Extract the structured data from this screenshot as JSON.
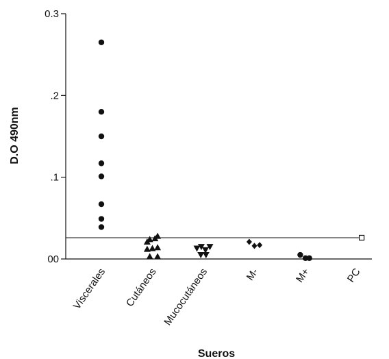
{
  "chart_data": {
    "type": "scatter",
    "xlabel": "Sueros",
    "ylabel": "D.O 490nm",
    "ylim": [
      0,
      0.3
    ],
    "yticks": [
      {
        "value": 0,
        "label": "00"
      },
      {
        "value": 0.1,
        "label": ".1"
      },
      {
        "value": 0.2,
        "label": ".2"
      },
      {
        "value": 0.3,
        "label": "0.3"
      }
    ],
    "categories": [
      "Viscerales",
      "Cutáneos",
      "Mucocutáneos",
      "M-",
      "M+",
      "PC"
    ],
    "cutoff": 0.026,
    "series": [
      {
        "category": "Viscerales",
        "marker": "circle",
        "points": [
          {
            "x": 0,
            "y": 0.265
          },
          {
            "x": 0,
            "y": 0.18
          },
          {
            "x": 0,
            "y": 0.15
          },
          {
            "x": 0,
            "y": 0.117
          },
          {
            "x": 0,
            "y": 0.101
          },
          {
            "x": 0,
            "y": 0.067
          },
          {
            "x": 0,
            "y": 0.049
          },
          {
            "x": 0,
            "y": 0.039
          }
        ]
      },
      {
        "category": "Cutáneos",
        "marker": "triangle-up",
        "points": [
          {
            "x": -0.2,
            "y": 0.021
          },
          {
            "x": -0.1,
            "y": 0.024
          },
          {
            "x": 0.1,
            "y": 0.025
          },
          {
            "x": 0.2,
            "y": 0.028
          },
          {
            "x": -0.2,
            "y": 0.012
          },
          {
            "x": 0,
            "y": 0.013
          },
          {
            "x": 0.2,
            "y": 0.014
          },
          {
            "x": -0.1,
            "y": 0.003
          },
          {
            "x": 0.2,
            "y": 0.003
          }
        ]
      },
      {
        "category": "Mucocutáneos",
        "marker": "triangle-down",
        "points": [
          {
            "x": -0.25,
            "y": 0.013
          },
          {
            "x": -0.08,
            "y": 0.015
          },
          {
            "x": 0.08,
            "y": 0.011
          },
          {
            "x": 0.25,
            "y": 0.015
          },
          {
            "x": -0.1,
            "y": 0.005
          },
          {
            "x": 0.1,
            "y": 0.005
          }
        ]
      },
      {
        "category": "M-",
        "marker": "diamond",
        "points": [
          {
            "x": -0.2,
            "y": 0.021
          },
          {
            "x": 0,
            "y": 0.016
          },
          {
            "x": 0.2,
            "y": 0.017
          }
        ]
      },
      {
        "category": "M+",
        "marker": "circle",
        "points": [
          {
            "x": -0.2,
            "y": 0.005
          },
          {
            "x": 0,
            "y": 0.001
          },
          {
            "x": 0.15,
            "y": 0.001
          }
        ]
      },
      {
        "category": "PC",
        "marker": "square-open",
        "points": [
          {
            "x": 0.2,
            "y": 0.026
          }
        ]
      }
    ]
  }
}
